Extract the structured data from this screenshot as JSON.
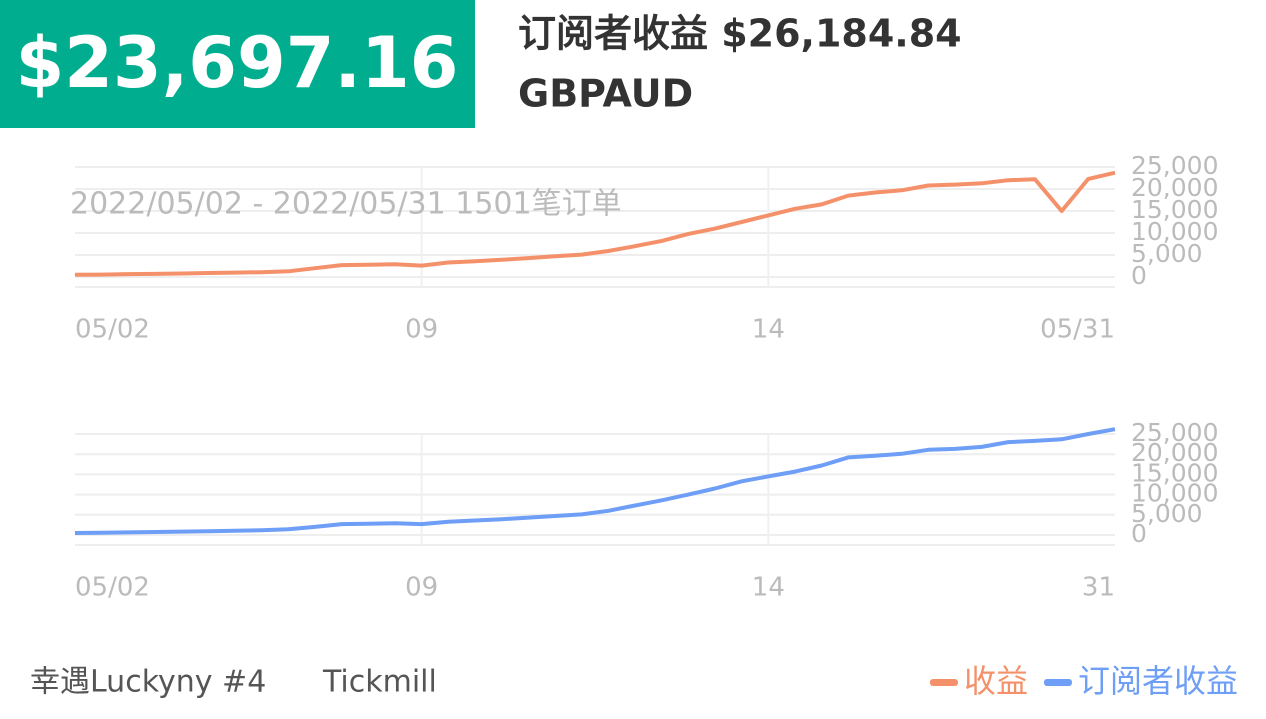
{
  "header": {
    "amount": "$23,697.16",
    "title": "订阅者收益 $26,184.84",
    "symbol": "GBPAUD"
  },
  "footer": {
    "account": "幸遇Luckyny #4",
    "broker": "Tickmill"
  },
  "chart_data": [
    {
      "type": "line",
      "subtitle": "2022/05/02 - 2022/05/31  1501笔订单",
      "categories": [
        "05/02",
        null,
        null,
        null,
        null,
        null,
        null,
        null,
        null,
        null,
        null,
        null,
        null,
        "09",
        null,
        null,
        null,
        null,
        null,
        null,
        null,
        null,
        null,
        null,
        null,
        null,
        "14",
        null,
        null,
        null,
        null,
        null,
        null,
        null,
        null,
        null,
        null,
        null,
        null,
        "05/31"
      ],
      "series": [
        {
          "name": "收益",
          "color": "#f4916a",
          "values": [
            500,
            550,
            650,
            700,
            800,
            900,
            1000,
            1100,
            1300,
            2000,
            2700,
            2800,
            2900,
            2600,
            3300,
            3600,
            3900,
            4300,
            4700,
            5100,
            5900,
            7000,
            8200,
            9800,
            11000,
            12500,
            14000,
            15500,
            16500,
            18500,
            19200,
            19700,
            20800,
            21000,
            21300,
            22000,
            22200,
            15000,
            22300,
            23700
          ]
        }
      ],
      "ylim": [
        0,
        25000
      ],
      "yticks": [
        0,
        {
          "value": 5000,
          "label": "5,000"
        },
        {
          "value": 10000,
          "label": "10,000"
        },
        {
          "value": 15000,
          "label": "15,000"
        },
        {
          "value": 20000,
          "label": "20,000"
        },
        {
          "value": 25000,
          "label": "25,000"
        }
      ],
      "grid": true
    },
    {
      "type": "line",
      "categories": [
        "05/02",
        null,
        null,
        null,
        null,
        null,
        null,
        null,
        null,
        null,
        null,
        null,
        null,
        "09",
        null,
        null,
        null,
        null,
        null,
        null,
        null,
        null,
        null,
        null,
        null,
        null,
        "14",
        null,
        null,
        null,
        null,
        null,
        null,
        null,
        null,
        null,
        null,
        null,
        null,
        "31"
      ],
      "series": [
        {
          "name": "订阅者收益",
          "color": "#6e9ef5",
          "values": [
            500,
            550,
            650,
            750,
            850,
            950,
            1050,
            1200,
            1400,
            2000,
            2700,
            2800,
            2900,
            2700,
            3300,
            3600,
            3900,
            4300,
            4700,
            5100,
            6000,
            7300,
            8600,
            10000,
            11500,
            13300,
            14500,
            15700,
            17200,
            19200,
            19600,
            20100,
            21100,
            21300,
            21800,
            23000,
            23300,
            23700,
            25000,
            26184.84
          ]
        }
      ],
      "ylim": [
        0,
        25000
      ],
      "yticks": [
        0,
        {
          "value": 5000,
          "label": "5,000"
        },
        {
          "value": 10000,
          "label": "10,000"
        },
        {
          "value": 15000,
          "label": "15,000"
        },
        {
          "value": 20000,
          "label": "20,000"
        },
        {
          "value": 25000,
          "label": "25,000"
        }
      ],
      "grid": true
    }
  ]
}
